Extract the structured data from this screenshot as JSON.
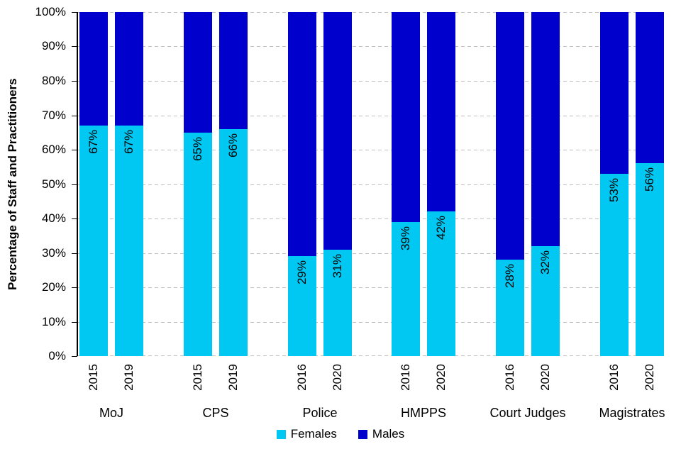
{
  "chart_data": {
    "type": "bar",
    "variant": "100-percent-stacked-column",
    "title": "",
    "xlabel": "",
    "ylabel": "Percentage of Staff and Practitioners",
    "ylim": [
      0,
      100
    ],
    "ytick_percent": [
      0,
      10,
      20,
      30,
      40,
      50,
      60,
      70,
      80,
      90,
      100
    ],
    "ytick_labels": [
      "0%",
      "10%",
      "20%",
      "30%",
      "40%",
      "50%",
      "60%",
      "70%",
      "80%",
      "90%",
      "100%"
    ],
    "grid": "horizontal-dashed",
    "gridline_color": "#BFBFBF",
    "axis_color": "#000000",
    "legend_position": "bottom",
    "colors": {
      "females": "#00C8F2",
      "males": "#0000CC"
    },
    "series": [
      {
        "name": "Females",
        "color": "#00C8F2",
        "values": [
          67,
          67,
          65,
          66,
          29,
          31,
          39,
          42,
          28,
          32,
          53,
          56
        ]
      },
      {
        "name": "Males",
        "color": "#0000CC",
        "values": [
          33,
          33,
          35,
          34,
          71,
          69,
          61,
          58,
          72,
          68,
          47,
          44
        ]
      }
    ],
    "groups": [
      {
        "label": "MoJ",
        "bars": [
          {
            "year": "2015",
            "females": 67,
            "males": 33,
            "value_label": "67%"
          },
          {
            "year": "2019",
            "females": 67,
            "males": 33,
            "value_label": "67%"
          }
        ]
      },
      {
        "label": "CPS",
        "bars": [
          {
            "year": "2015",
            "females": 65,
            "males": 35,
            "value_label": "65%"
          },
          {
            "year": "2019",
            "females": 66,
            "males": 34,
            "value_label": "66%"
          }
        ]
      },
      {
        "label": "Police",
        "bars": [
          {
            "year": "2016",
            "females": 29,
            "males": 71,
            "value_label": "29%"
          },
          {
            "year": "2020",
            "females": 31,
            "males": 69,
            "value_label": "31%"
          }
        ]
      },
      {
        "label": "HMPPS",
        "bars": [
          {
            "year": "2016",
            "females": 39,
            "males": 61,
            "value_label": "39%"
          },
          {
            "year": "2020",
            "females": 42,
            "males": 58,
            "value_label": "42%"
          }
        ]
      },
      {
        "label": "Court Judges",
        "bars": [
          {
            "year": "2016",
            "females": 28,
            "males": 72,
            "value_label": "28%"
          },
          {
            "year": "2020",
            "females": 32,
            "males": 68,
            "value_label": "32%"
          }
        ]
      },
      {
        "label": "Magistrates",
        "bars": [
          {
            "year": "2016",
            "females": 53,
            "males": 47,
            "value_label": "53%"
          },
          {
            "year": "2020",
            "females": 56,
            "males": 44,
            "value_label": "56%"
          }
        ]
      }
    ],
    "legend": [
      {
        "label": "Females",
        "color": "#00C8F2"
      },
      {
        "label": "Males",
        "color": "#0000CC"
      }
    ]
  }
}
